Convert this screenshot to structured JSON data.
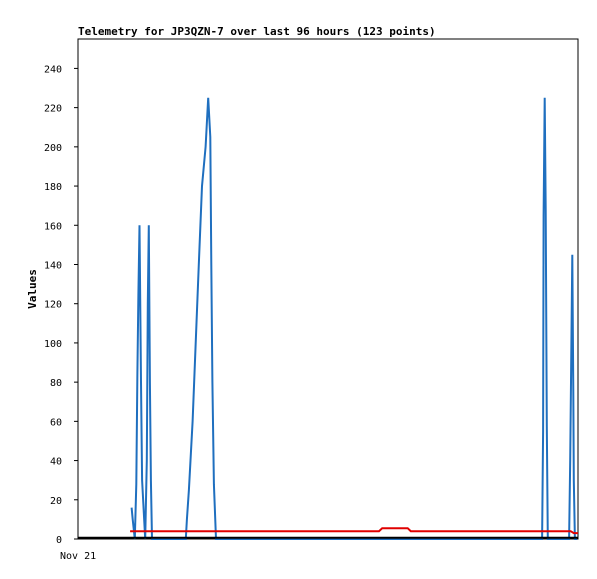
{
  "chart_data": {
    "type": "line",
    "title": "Telemetry for JP3QZN-7 over last 96 hours (123 points)",
    "xlabel": "",
    "ylabel": "Values",
    "x_tick_labels": [
      "Nov 21"
    ],
    "x_unit": "hours",
    "xlim": [
      0,
      96
    ],
    "ylim": [
      0,
      255
    ],
    "y_ticks": [
      0,
      20,
      40,
      60,
      80,
      100,
      120,
      140,
      160,
      180,
      200,
      220,
      240
    ],
    "grid": false,
    "legend": "none",
    "colors": {
      "background": "#ffffff",
      "frame": "#000000",
      "series_a": "#1f6fbf",
      "series_b": "#e00000",
      "series_c": "#000000"
    },
    "series": [
      {
        "color": "#1f6fbf",
        "x": [
          10.3,
          10.5,
          10.9,
          11.2,
          11.4,
          11.6,
          11.8,
          12.1,
          12.3,
          12.9,
          13.2,
          13.4,
          13.6,
          13.8,
          14.0,
          14.2,
          14.5,
          14.7,
          20.7,
          20.9,
          21.3,
          22.0,
          22.6,
          23.2,
          23.8,
          24.5,
          25.0,
          25.4,
          25.6,
          25.8,
          26.1,
          26.5,
          26.8,
          27.0,
          89.1,
          89.3,
          89.4,
          89.6,
          89.8,
          90.0,
          90.2,
          94.3,
          94.5,
          94.7,
          94.9,
          95.1,
          95.2,
          95.4,
          95.5,
          95.6,
          95.8
        ],
        "y": [
          16,
          10,
          0,
          28,
          85,
          125,
          160,
          80,
          30,
          0,
          40,
          120,
          160,
          80,
          30,
          0,
          0,
          0,
          0,
          10,
          25,
          60,
          100,
          140,
          180,
          200,
          225,
          205,
          140,
          80,
          28,
          0,
          0,
          0,
          0,
          55,
          165,
          225,
          168,
          58,
          0,
          0,
          40,
          90,
          145,
          75,
          30,
          0,
          0,
          0,
          0
        ]
      },
      {
        "color": "#e00000",
        "x": [
          10.0,
          57.8,
          58.4,
          63.3,
          63.9,
          94.6,
          95.2,
          96.0
        ],
        "y": [
          4,
          4,
          5.5,
          5.5,
          4,
          4,
          3,
          3
        ]
      },
      {
        "color": "#000000",
        "x": [
          0,
          96
        ],
        "y": [
          0.6,
          0.6
        ]
      }
    ]
  }
}
